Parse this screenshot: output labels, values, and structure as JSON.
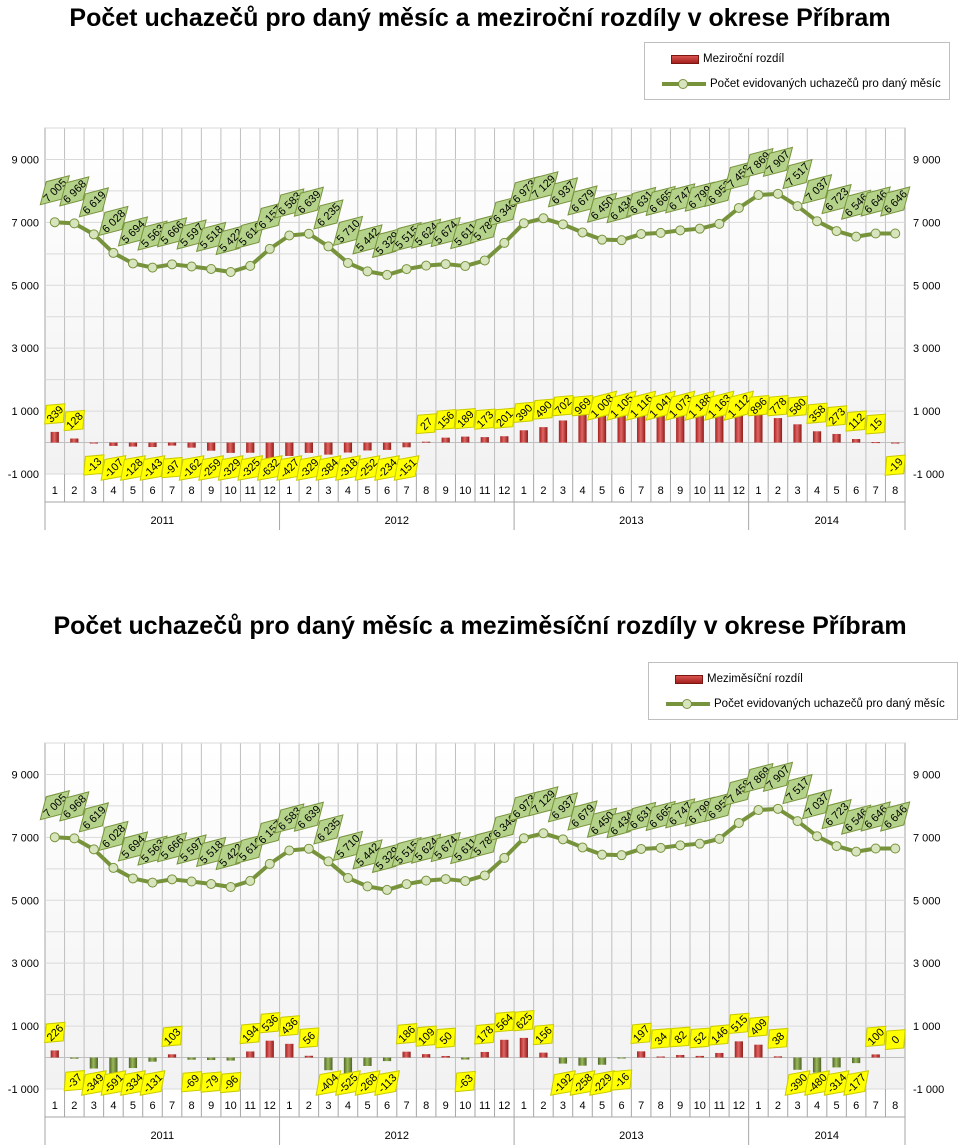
{
  "charts": [
    {
      "title": "Počet uchazečů pro daný měsíc a meziroční rozdíly v okrese Příbram",
      "legend": {
        "bar": "Meziroční rozdíl",
        "line": "Počet evidovaných uchazečů pro daný měsíc"
      }
    },
    {
      "title": "Počet uchazečů pro daný měsíc a meziměsíční rozdíly v okrese Příbram",
      "legend": {
        "bar": "Meziměsíční rozdíl",
        "line": "Počet evidovaných uchazečů pro daný měsíc"
      }
    }
  ],
  "chart_data": [
    {
      "type": "bar+line",
      "title": "Počet uchazečů pro daný měsíc a meziroční rozdíly v okrese Příbram",
      "years": [
        {
          "label": "2011",
          "months": 12
        },
        {
          "label": "2012",
          "months": 12
        },
        {
          "label": "2013",
          "months": 12
        },
        {
          "label": "2014",
          "months": 8
        }
      ],
      "categories": [
        "1",
        "2",
        "3",
        "4",
        "5",
        "6",
        "7",
        "8",
        "9",
        "10",
        "11",
        "12",
        "1",
        "2",
        "3",
        "4",
        "5",
        "6",
        "7",
        "8",
        "9",
        "10",
        "11",
        "12",
        "1",
        "2",
        "3",
        "4",
        "5",
        "6",
        "7",
        "8",
        "9",
        "10",
        "11",
        "12",
        "1",
        "2",
        "3",
        "4",
        "5",
        "6",
        "7",
        "8"
      ],
      "y_ticks": [
        -1000,
        1000,
        3000,
        5000,
        7000,
        9000
      ],
      "y_tick_labels": [
        "-1 000",
        "1 000",
        "3 000",
        "5 000",
        "7 000",
        "9 000"
      ],
      "ylim": [
        -1000,
        10000
      ],
      "series": [
        {
          "name": "Meziroční rozdíl",
          "kind": "bar",
          "values": [
            339,
            128,
            -13,
            -107,
            -128,
            -143,
            -97,
            -162,
            -259,
            -329,
            -325,
            -632,
            -427,
            -329,
            -384,
            -318,
            -252,
            -234,
            -151,
            27,
            156,
            189,
            173,
            201,
            390,
            490,
            702,
            969,
            1008,
            1105,
            1116,
            1041,
            1073,
            1188,
            1163,
            1112,
            896,
            778,
            580,
            358,
            273,
            112,
            15,
            -19
          ],
          "labels": [
            "339",
            "128",
            "-13",
            "-107",
            "-128",
            "-143",
            "-97",
            "-162",
            "-259",
            "-329",
            "-325",
            "-632",
            "-427",
            "-329",
            "-384",
            "-318",
            "-252",
            "-234",
            "-151",
            "27",
            "156",
            "189",
            "173",
            "201",
            "390",
            "490",
            "702",
            "969",
            "1 008",
            "1 105",
            "1 116",
            "1 041",
            "1 073",
            "1 188",
            "1 163",
            "1 112",
            "896",
            "778",
            "580",
            "358",
            "273",
            "112",
            "15",
            "-19"
          ]
        },
        {
          "name": "Počet evidovaných uchazečů pro daný měsíc",
          "kind": "line",
          "values": [
            7005,
            6968,
            6619,
            6028,
            5694,
            5563,
            5666,
            5597,
            5518,
            5422,
            5616,
            6157,
            6583,
            6639,
            6235,
            5710,
            5442,
            5329,
            5515,
            5624,
            5674,
            5611,
            5789,
            6346,
            6973,
            7129,
            6937,
            6679,
            6450,
            6434,
            6631,
            6665,
            6747,
            6799,
            6952,
            7458,
            7869,
            7907,
            7517,
            7037,
            6723,
            6546,
            6646,
            6646
          ],
          "labels": [
            "7 005",
            "6 968",
            "6 619",
            "6 028",
            "5 694",
            "5 563",
            "5 666",
            "5 597",
            "5 518",
            "5 422",
            "5 616",
            "6 157",
            "6 583",
            "6 639",
            "6 235",
            "5 710",
            "5 442",
            "5 329",
            "5 515",
            "5 624",
            "5 674",
            "5 611",
            "5 789",
            "6 346",
            "6 973",
            "7 129",
            "6 937",
            "6 679",
            "6 450",
            "6 434",
            "6 631",
            "6 665",
            "6 747",
            "6 799",
            "6 952",
            "7 458",
            "7 869",
            "7 907",
            "7 517",
            "7 037",
            "6 723",
            "6 546",
            "6 646",
            "6 646"
          ]
        }
      ]
    },
    {
      "type": "bar+line",
      "title": "Počet uchazečů pro daný měsíc a meziměsíční rozdíly v okrese Příbram",
      "years": [
        {
          "label": "2011",
          "months": 12
        },
        {
          "label": "2012",
          "months": 12
        },
        {
          "label": "2013",
          "months": 12
        },
        {
          "label": "2014",
          "months": 8
        }
      ],
      "categories": [
        "1",
        "2",
        "3",
        "4",
        "5",
        "6",
        "7",
        "8",
        "9",
        "10",
        "11",
        "12",
        "1",
        "2",
        "3",
        "4",
        "5",
        "6",
        "7",
        "8",
        "9",
        "10",
        "11",
        "12",
        "1",
        "2",
        "3",
        "4",
        "5",
        "6",
        "7",
        "8",
        "9",
        "10",
        "11",
        "12",
        "1",
        "2",
        "3",
        "4",
        "5",
        "6",
        "7",
        "8"
      ],
      "y_ticks": [
        -1000,
        1000,
        3000,
        5000,
        7000,
        9000
      ],
      "y_tick_labels": [
        "-1 000",
        "1 000",
        "3 000",
        "5 000",
        "7 000",
        "9 000"
      ],
      "ylim": [
        -1000,
        10000
      ],
      "series": [
        {
          "name": "Meziměsíční rozdíl",
          "kind": "bar",
          "values": [
            226,
            -37,
            -349,
            -591,
            -334,
            -131,
            103,
            -69,
            -79,
            -96,
            194,
            536,
            436,
            56,
            -404,
            -525,
            -268,
            -113,
            186,
            109,
            50,
            -63,
            178,
            564,
            625,
            156,
            -192,
            -258,
            -229,
            -16,
            197,
            34,
            82,
            52,
            146,
            515,
            409,
            38,
            -390,
            -480,
            -314,
            -177,
            100,
            0
          ],
          "labels": [
            "226",
            "-37",
            "-349",
            "-591",
            "-334",
            "-131",
            "103",
            "-69",
            "-79",
            "-96",
            "194",
            "536",
            "436",
            "56",
            "-404",
            "-525",
            "-268",
            "-113",
            "186",
            "109",
            "50",
            "-63",
            "178",
            "564",
            "625",
            "156",
            "-192",
            "-258",
            "-229",
            "-16",
            "197",
            "34",
            "82",
            "52",
            "146",
            "515",
            "409",
            "38",
            "-390",
            "-480",
            "-314",
            "-177",
            "100",
            "0"
          ]
        },
        {
          "name": "Počet evidovaných uchazečů pro daný měsíc",
          "kind": "line",
          "values": [
            7005,
            6968,
            6619,
            6028,
            5694,
            5563,
            5666,
            5597,
            5518,
            5422,
            5616,
            6157,
            6583,
            6639,
            6235,
            5710,
            5442,
            5329,
            5515,
            5624,
            5674,
            5611,
            5789,
            6346,
            6973,
            7129,
            6937,
            6679,
            6450,
            6434,
            6631,
            6665,
            6747,
            6799,
            6952,
            7458,
            7869,
            7907,
            7517,
            7037,
            6723,
            6546,
            6646,
            6646
          ],
          "labels": [
            "7 005",
            "6 968",
            "6 619",
            "6 028",
            "5 694",
            "5 563",
            "5 666",
            "5 597",
            "5 518",
            "5 422",
            "5 616",
            "6 157",
            "6 583",
            "6 639",
            "6 235",
            "5 710",
            "5 442",
            "5 329",
            "5 515",
            "5 624",
            "5 674",
            "5 611",
            "5 789",
            "6 346",
            "6 973",
            "7 129",
            "6 937",
            "6 679",
            "6 450",
            "6 434",
            "6 631",
            "6 665",
            "6 747",
            "6 799",
            "6 952",
            "7 458",
            "7 869",
            "7 907",
            "7 517",
            "7 037",
            "6 723",
            "6 546",
            "6 646",
            "6 646"
          ]
        }
      ]
    }
  ]
}
